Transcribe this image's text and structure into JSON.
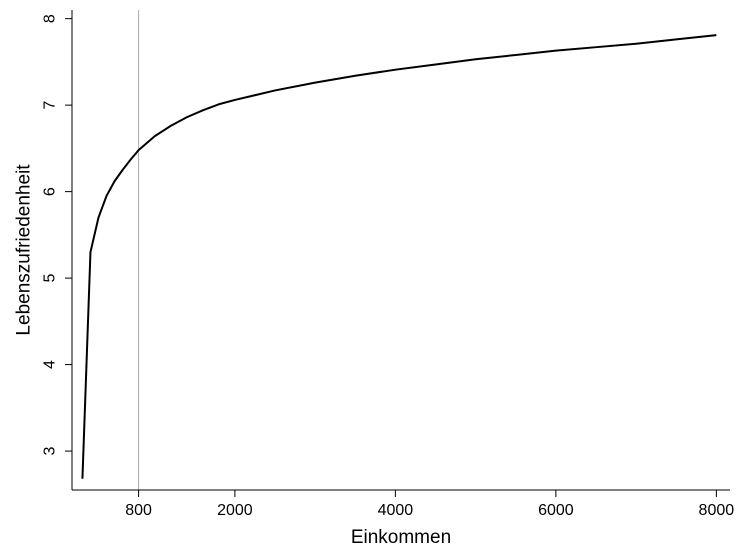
{
  "chart_data": {
    "type": "line",
    "xlabel": "Einkommen",
    "ylabel": "Lebenszufriedenheit",
    "x_ticks": [
      800,
      2000,
      4000,
      6000,
      8000
    ],
    "y_ticks": [
      3,
      4,
      5,
      6,
      7,
      8
    ],
    "xlim": [
      -30,
      8170
    ],
    "ylim": [
      2.55,
      8.1
    ],
    "reference_line_x": 800,
    "grid": false,
    "series": [
      {
        "color": "#000000",
        "x": [
          100,
          200,
          300,
          400,
          500,
          600,
          700,
          800,
          1000,
          1200,
          1400,
          1600,
          1800,
          2000,
          2500,
          3000,
          3500,
          4000,
          4500,
          5000,
          5500,
          6000,
          6500,
          7000,
          7500,
          8000
        ],
        "y": [
          2.68,
          5.3,
          5.7,
          5.95,
          6.12,
          6.25,
          6.37,
          6.48,
          6.64,
          6.76,
          6.86,
          6.94,
          7.01,
          7.06,
          7.17,
          7.26,
          7.34,
          7.41,
          7.47,
          7.53,
          7.58,
          7.63,
          7.67,
          7.71,
          7.76,
          7.81
        ]
      }
    ]
  }
}
